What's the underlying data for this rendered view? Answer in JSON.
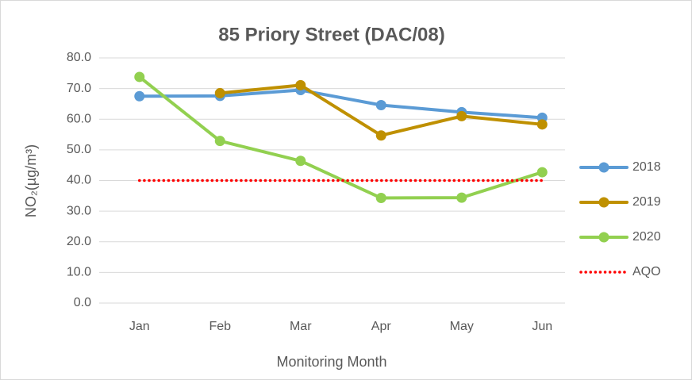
{
  "chart_data": {
    "type": "line",
    "title": "85 Priory Street (DAC/08)",
    "x_label": "Monitoring Month",
    "y_label": "NO₂(µg/m³)",
    "categories": [
      "Jan",
      "Feb",
      "Mar",
      "Apr",
      "May",
      "Jun"
    ],
    "series": [
      {
        "name": "2018",
        "color": "#5b9bd5",
        "values": [
          67.5,
          67.6,
          69.5,
          64.6,
          62.3,
          60.5
        ]
      },
      {
        "name": "2019",
        "color": "#bf9000",
        "values": [
          null,
          68.5,
          71.1,
          54.7,
          61.0,
          58.3
        ]
      },
      {
        "name": "2020",
        "color": "#92d050",
        "values": [
          73.8,
          52.9,
          46.4,
          34.3,
          34.4,
          42.7
        ]
      },
      {
        "name": "AQO",
        "color": "#ff0000",
        "dotted": true,
        "values": [
          40,
          40,
          40,
          40,
          40,
          40
        ]
      }
    ],
    "ylim": [
      0,
      80
    ],
    "yticks": [
      {
        "value": 0,
        "label": "0.0"
      },
      {
        "value": 10,
        "label": "10.0"
      },
      {
        "value": 20,
        "label": "20.0"
      },
      {
        "value": 30,
        "label": "30.0"
      },
      {
        "value": 40,
        "label": "40.0"
      },
      {
        "value": 50,
        "label": "50.0"
      },
      {
        "value": 60,
        "label": "60.0"
      },
      {
        "value": 70,
        "label": "70.0"
      },
      {
        "value": 80,
        "label": "80.0"
      }
    ],
    "grid": true,
    "legend": "right"
  }
}
